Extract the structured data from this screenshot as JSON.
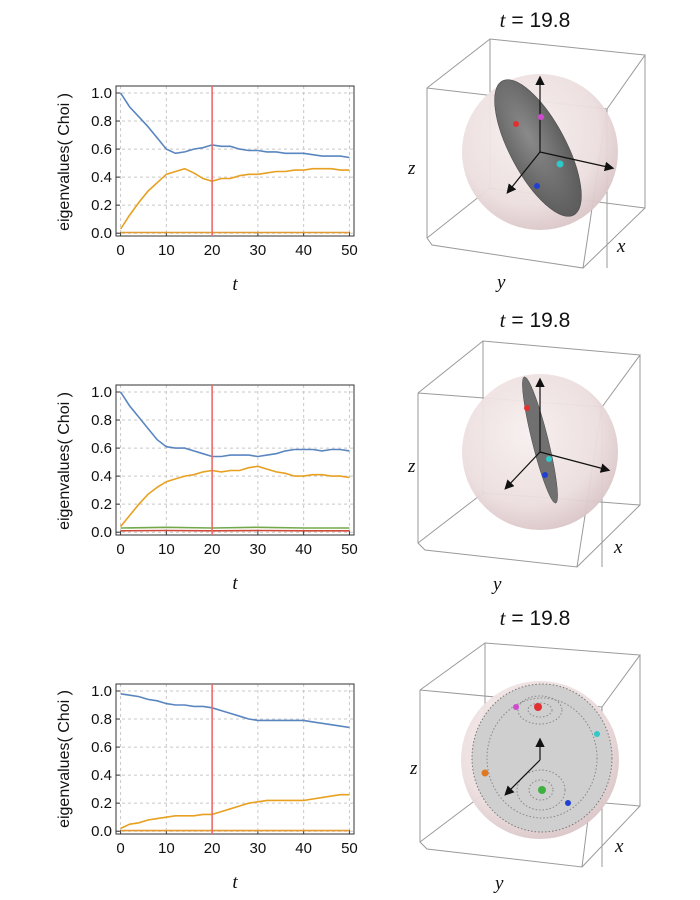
{
  "chart_data": [
    {
      "type": "line",
      "xlabel": "t",
      "ylabel": "eigenvalues( Choi )",
      "xlim": [
        -1,
        51
      ],
      "ylim": [
        -0.02,
        1.05
      ],
      "xticks": [
        "0",
        "10",
        "20",
        "30",
        "40",
        "50"
      ],
      "yticks": [
        "0.0",
        "0.2",
        "0.4",
        "0.6",
        "0.8",
        "1.0"
      ],
      "grid": true,
      "marker_t": 20,
      "marker_color": "#f06a6a",
      "series": [
        {
          "color": "#5a86c0",
          "x": [
            0,
            2,
            4,
            6,
            8,
            10,
            12,
            14,
            16,
            18,
            20,
            22,
            24,
            26,
            28,
            30,
            32,
            34,
            36,
            38,
            40,
            42,
            44,
            46,
            48,
            50
          ],
          "y": [
            1.0,
            0.9,
            0.83,
            0.76,
            0.68,
            0.6,
            0.57,
            0.58,
            0.6,
            0.61,
            0.63,
            0.62,
            0.62,
            0.6,
            0.59,
            0.59,
            0.58,
            0.58,
            0.57,
            0.57,
            0.57,
            0.56,
            0.55,
            0.55,
            0.55,
            0.54
          ]
        },
        {
          "color": "#e8a020",
          "x": [
            0,
            2,
            4,
            6,
            8,
            10,
            12,
            14,
            16,
            18,
            20,
            22,
            24,
            26,
            28,
            30,
            32,
            34,
            36,
            38,
            40,
            42,
            44,
            46,
            48,
            50
          ],
          "y": [
            0.03,
            0.13,
            0.22,
            0.3,
            0.36,
            0.42,
            0.44,
            0.46,
            0.43,
            0.39,
            0.37,
            0.39,
            0.39,
            0.41,
            0.42,
            0.42,
            0.43,
            0.44,
            0.44,
            0.45,
            0.45,
            0.46,
            0.46,
            0.46,
            0.45,
            0.45
          ]
        },
        {
          "color": "#e39a32",
          "x": [
            0,
            10,
            20,
            30,
            40,
            50
          ],
          "y": [
            0.005,
            0.005,
            0.005,
            0.005,
            0.005,
            0.005
          ]
        }
      ]
    },
    {
      "type": "line",
      "xlabel": "t",
      "ylabel": "eigenvalues( Choi )",
      "xlim": [
        -1,
        51
      ],
      "ylim": [
        -0.02,
        1.05
      ],
      "xticks": [
        "0",
        "10",
        "20",
        "30",
        "40",
        "50"
      ],
      "yticks": [
        "0.0",
        "0.2",
        "0.4",
        "0.6",
        "0.8",
        "1.0"
      ],
      "grid": true,
      "marker_t": 20,
      "marker_color": "#f06a6a",
      "series": [
        {
          "color": "#5a86c0",
          "x": [
            0,
            2,
            4,
            6,
            8,
            10,
            12,
            14,
            16,
            18,
            20,
            22,
            24,
            26,
            28,
            30,
            32,
            34,
            36,
            38,
            40,
            42,
            44,
            46,
            48,
            50
          ],
          "y": [
            1.0,
            0.9,
            0.82,
            0.74,
            0.66,
            0.61,
            0.6,
            0.6,
            0.58,
            0.56,
            0.54,
            0.54,
            0.55,
            0.55,
            0.55,
            0.54,
            0.55,
            0.56,
            0.58,
            0.59,
            0.59,
            0.59,
            0.58,
            0.59,
            0.59,
            0.58
          ]
        },
        {
          "color": "#e8a020",
          "x": [
            0,
            2,
            4,
            6,
            8,
            10,
            12,
            14,
            16,
            18,
            20,
            22,
            24,
            26,
            28,
            30,
            32,
            34,
            36,
            38,
            40,
            42,
            44,
            46,
            48,
            50
          ],
          "y": [
            0.04,
            0.12,
            0.2,
            0.27,
            0.32,
            0.36,
            0.38,
            0.4,
            0.41,
            0.43,
            0.44,
            0.43,
            0.44,
            0.44,
            0.46,
            0.47,
            0.45,
            0.43,
            0.42,
            0.4,
            0.4,
            0.41,
            0.41,
            0.4,
            0.4,
            0.39
          ]
        },
        {
          "color": "#72a84a",
          "x": [
            0,
            10,
            20,
            30,
            40,
            50
          ],
          "y": [
            0.03,
            0.035,
            0.03,
            0.035,
            0.03,
            0.03
          ]
        },
        {
          "color": "#d04a3a",
          "x": [
            0,
            10,
            20,
            30,
            40,
            50
          ],
          "y": [
            0.01,
            0.012,
            0.01,
            0.012,
            0.01,
            0.01
          ]
        }
      ]
    },
    {
      "type": "line",
      "xlabel": "t",
      "ylabel": "eigenvalues( Choi )",
      "xlim": [
        -1,
        51
      ],
      "ylim": [
        -0.02,
        1.05
      ],
      "xticks": [
        "0",
        "10",
        "20",
        "30",
        "40",
        "50"
      ],
      "yticks": [
        "0.0",
        "0.2",
        "0.4",
        "0.6",
        "0.8",
        "1.0"
      ],
      "grid": true,
      "marker_t": 20,
      "marker_color": "#f06a6a",
      "series": [
        {
          "color": "#5a86c0",
          "x": [
            0,
            2,
            4,
            6,
            8,
            10,
            12,
            14,
            16,
            18,
            20,
            22,
            24,
            26,
            28,
            30,
            32,
            34,
            36,
            38,
            40,
            42,
            44,
            46,
            48,
            50
          ],
          "y": [
            0.98,
            0.97,
            0.96,
            0.94,
            0.93,
            0.91,
            0.9,
            0.9,
            0.89,
            0.89,
            0.88,
            0.86,
            0.84,
            0.82,
            0.8,
            0.79,
            0.79,
            0.79,
            0.79,
            0.79,
            0.79,
            0.78,
            0.77,
            0.76,
            0.75,
            0.74
          ]
        },
        {
          "color": "#e8a020",
          "x": [
            0,
            2,
            4,
            6,
            8,
            10,
            12,
            14,
            16,
            18,
            20,
            22,
            24,
            26,
            28,
            30,
            32,
            34,
            36,
            38,
            40,
            42,
            44,
            46,
            48,
            50
          ],
          "y": [
            0.02,
            0.05,
            0.06,
            0.08,
            0.09,
            0.1,
            0.11,
            0.11,
            0.11,
            0.12,
            0.12,
            0.14,
            0.16,
            0.18,
            0.2,
            0.21,
            0.22,
            0.22,
            0.22,
            0.22,
            0.22,
            0.23,
            0.24,
            0.25,
            0.26,
            0.26
          ]
        },
        {
          "color": "#e39a32",
          "x": [
            0,
            10,
            20,
            30,
            40,
            50
          ],
          "y": [
            0.004,
            0.004,
            0.004,
            0.004,
            0.004,
            0.004
          ]
        }
      ]
    }
  ],
  "panels3d": [
    {
      "title_var": "t",
      "title_eq": " = 19.8",
      "axis_x": "x",
      "axis_y": "y",
      "axis_z": "z",
      "shape": "ellipsoid-wide"
    },
    {
      "title_var": "t",
      "title_eq": " = 19.8",
      "axis_x": "x",
      "axis_y": "y",
      "axis_z": "z",
      "shape": "ellipsoid-thin"
    },
    {
      "title_var": "t",
      "title_eq": " = 19.8",
      "axis_x": "x",
      "axis_y": "y",
      "axis_z": "z",
      "shape": "sphere"
    }
  ]
}
